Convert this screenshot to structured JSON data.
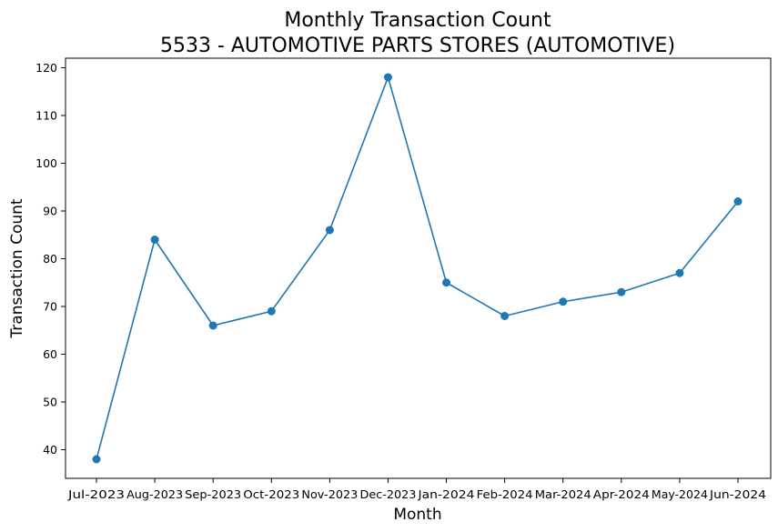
{
  "chart_data": {
    "type": "line",
    "title": "Monthly Transaction Count",
    "subtitle": "5533 - AUTOMOTIVE PARTS STORES (AUTOMOTIVE)",
    "xlabel": "Month",
    "ylabel": "Transaction Count",
    "categories": [
      "Jul-2023",
      "Aug-2023",
      "Sep-2023",
      "Oct-2023",
      "Nov-2023",
      "Dec-2023",
      "Jan-2024",
      "Feb-2024",
      "Mar-2024",
      "Apr-2024",
      "May-2024",
      "Jun-2024"
    ],
    "series": [
      {
        "values": [
          38,
          84,
          66,
          69,
          86,
          118,
          75,
          68,
          71,
          73,
          77,
          92
        ]
      }
    ],
    "ylim": [
      34,
      122
    ],
    "yticks": [
      40,
      50,
      60,
      70,
      80,
      90,
      100,
      110,
      120
    ],
    "grid": false,
    "line_color": "#1f77b4",
    "marker": "circle"
  }
}
